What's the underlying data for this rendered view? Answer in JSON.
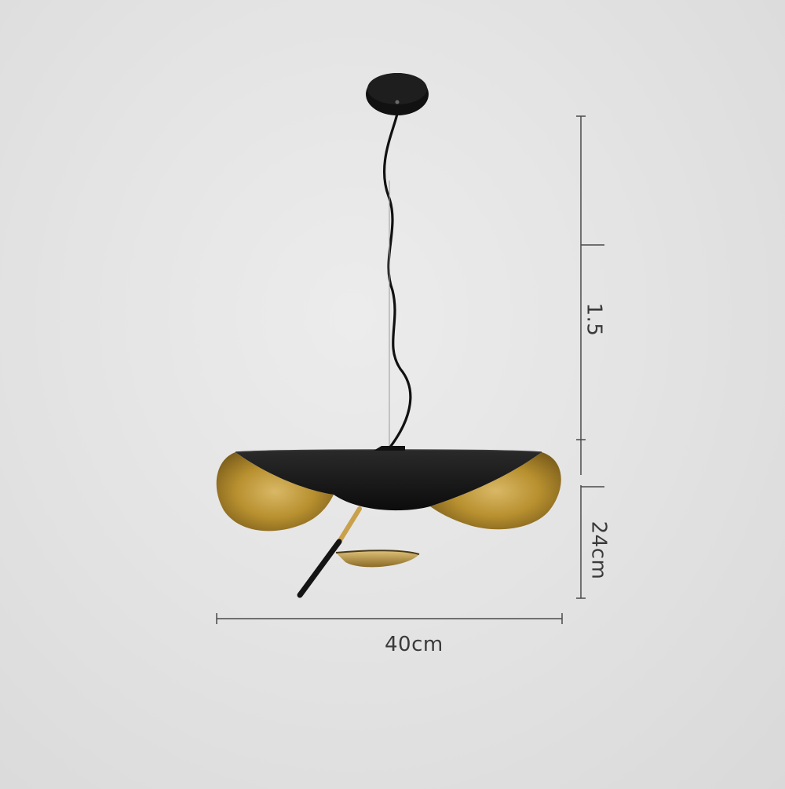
{
  "product": {
    "name_icon": "pendant-lamp-icon"
  },
  "dimensions": {
    "width_label": "40cm",
    "cable_label": "1.5",
    "shade_height_label": "24cm"
  },
  "colors": {
    "background": "#e4e4e4",
    "shade_black": "#151515",
    "shade_gold": "#b8902f",
    "dimension_line": "#4a4a4a"
  }
}
